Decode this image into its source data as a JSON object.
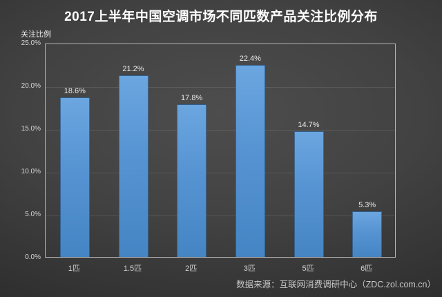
{
  "header": {
    "title": "2017上半年中国空调市场不同匹数产品关注比例分布"
  },
  "footer": {
    "text": "数据来源：互联网消费调研中心（ZDC.zol.com.cn）"
  },
  "chart_data": {
    "type": "bar",
    "title": "2017上半年中国空调市场不同匹数产品关注比例分布",
    "xlabel": "",
    "ylabel": "关注比例",
    "categories": [
      "1匹",
      "1.5匹",
      "2匹",
      "3匹",
      "5匹",
      "6匹"
    ],
    "values": [
      18.6,
      21.2,
      17.8,
      22.4,
      14.7,
      5.3
    ],
    "value_labels": [
      "18.6%",
      "21.2%",
      "17.8%",
      "22.4%",
      "14.7%",
      "5.3%"
    ],
    "ylim": [
      0,
      25
    ],
    "ytick_step": 5,
    "ytick_labels": [
      "0.0%",
      "5.0%",
      "10.0%",
      "15.0%",
      "20.0%",
      "25.0%"
    ],
    "grid": true,
    "legend": "none",
    "colors": {
      "bar_top": "#6ba6e0",
      "bar_bottom": "#4585c4",
      "bar_border": "#2b4a6b",
      "background_center": "#4d4d4d",
      "background_edge": "#232323",
      "axis_frame": "#b5b5b5",
      "gridline": "rgba(255,255,255,0.10)",
      "title_color": "#ffffff",
      "value_label_color": "#e9e9e9",
      "tick_label_color": "#d3d3d3",
      "footer_color": "#c9c9c9"
    }
  }
}
